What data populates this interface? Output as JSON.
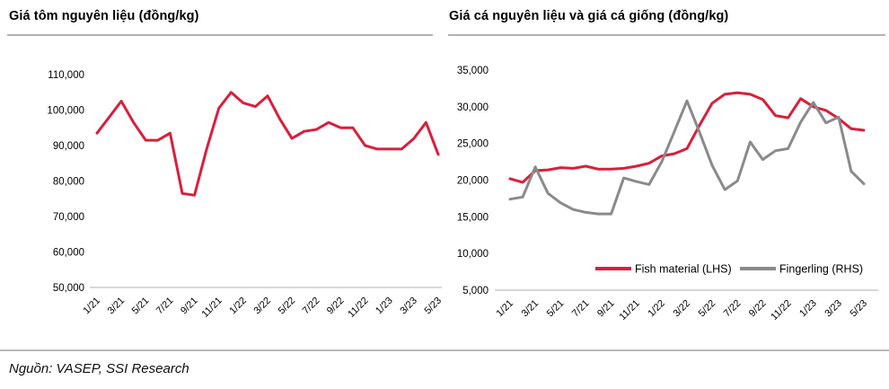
{
  "figure": {
    "left_title": "Giá tôm nguyên liệu (đồng/kg)",
    "right_title": "Giá cá nguyên liệu và giá cá giống (đồng/kg)",
    "source_note": "Nguồn: VASEP, SSI Research"
  },
  "colors": {
    "red": "#d91f3b",
    "gray": "#8a8a8a",
    "axis_line": "#bfbfbf",
    "rule": "#b3b3b3",
    "text": "#000000"
  },
  "chart_data": [
    {
      "type": "line",
      "title": "Giá tôm nguyên liệu (đồng/kg)",
      "ylabel": "đồng/kg",
      "xlabel": "",
      "grid": false,
      "legend": false,
      "ylim": [
        50000,
        110000
      ],
      "ytick_step": 10000,
      "tick_every": 2,
      "x": [
        "1/21",
        "2/21",
        "3/21",
        "4/21",
        "5/21",
        "6/21",
        "7/21",
        "8/21",
        "9/21",
        "10/21",
        "11/21",
        "12/21",
        "1/22",
        "2/22",
        "3/22",
        "4/22",
        "5/22",
        "6/22",
        "7/22",
        "8/22",
        "9/22",
        "10/22",
        "11/22",
        "12/22",
        "1/23",
        "2/23",
        "3/23",
        "4/23",
        "5/23"
      ],
      "tick_labels": [
        "1/21",
        "3/21",
        "5/21",
        "7/21",
        "9/21",
        "11/21",
        "1/22",
        "3/22",
        "5/22",
        "7/22",
        "9/22",
        "11/22",
        "1/23",
        "3/23",
        "5/23"
      ],
      "series": [
        {
          "name": "Giá tôm nguyên liệu",
          "color": "#d91f3b",
          "values": [
            93500,
            98000,
            102500,
            96500,
            91500,
            91500,
            93500,
            76500,
            76000,
            89000,
            100500,
            105000,
            102000,
            101000,
            104000,
            97500,
            92000,
            94000,
            94500,
            96500,
            95000,
            95000,
            90000,
            89000,
            89000,
            89000,
            92000,
            96500,
            87500
          ]
        }
      ]
    },
    {
      "type": "line",
      "title": "Giá cá nguyên liệu và giá cá giống (đồng/kg)",
      "ylabel": "đồng/kg",
      "xlabel": "",
      "grid": false,
      "legend": true,
      "legend_position": "bottom-center-inside",
      "ylim": [
        5000,
        35000
      ],
      "ytick_step": 5000,
      "tick_every": 2,
      "x": [
        "1/21",
        "2/21",
        "3/21",
        "4/21",
        "5/21",
        "6/21",
        "7/21",
        "8/21",
        "9/21",
        "10/21",
        "11/21",
        "12/21",
        "1/22",
        "2/22",
        "3/22",
        "4/22",
        "5/22",
        "6/22",
        "7/22",
        "8/22",
        "9/22",
        "10/22",
        "11/22",
        "12/22",
        "1/23",
        "2/23",
        "3/23",
        "4/23",
        "5/23"
      ],
      "tick_labels": [
        "1/21",
        "3/21",
        "5/21",
        "7/21",
        "9/21",
        "11/21",
        "1/22",
        "3/22",
        "5/22",
        "7/22",
        "9/22",
        "11/22",
        "1/23",
        "3/23",
        "5/23"
      ],
      "series": [
        {
          "name": "Fish material (LHS)",
          "color": "#d91f3b",
          "values": [
            20200,
            19700,
            21300,
            21400,
            21700,
            21600,
            21900,
            21500,
            21500,
            21600,
            21900,
            22300,
            23300,
            23600,
            24300,
            27500,
            30500,
            31700,
            31900,
            31700,
            31000,
            28800,
            28500,
            31100,
            30000,
            29500,
            28400,
            27000,
            26800
          ]
        },
        {
          "name": "Fingerling (RHS)",
          "color": "#8a8a8a",
          "values": [
            17400,
            17700,
            21800,
            18200,
            16900,
            16000,
            15600,
            15400,
            15400,
            20300,
            19800,
            19400,
            22500,
            26600,
            30800,
            26500,
            22000,
            18700,
            19900,
            25200,
            22800,
            24000,
            24300,
            27900,
            30600,
            27800,
            28600,
            21200,
            19500
          ]
        }
      ]
    }
  ]
}
